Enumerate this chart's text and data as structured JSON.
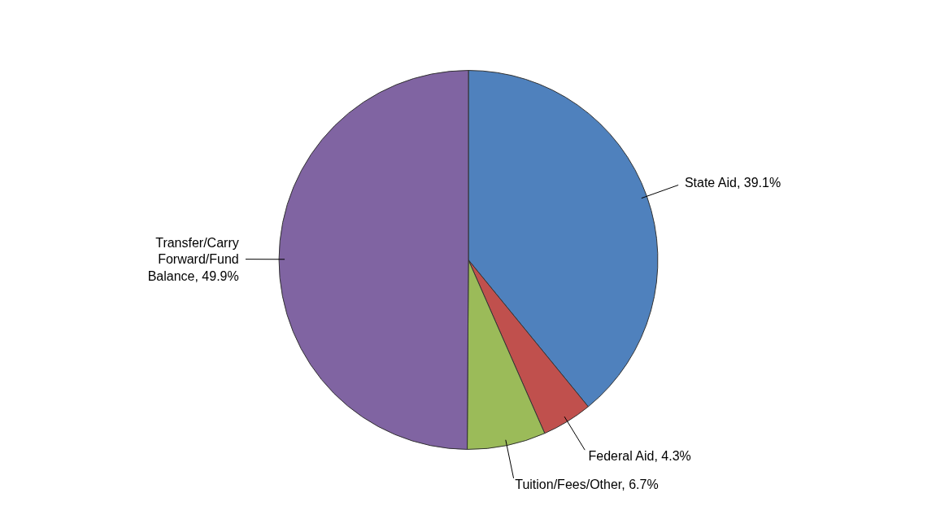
{
  "chart_data": {
    "type": "pie",
    "categories": [
      "State Aid",
      "Federal Aid",
      "Tuition/Fees/Other",
      "Transfer/Carry Forward/Fund Balance"
    ],
    "values": [
      39.1,
      4.3,
      6.7,
      49.9
    ],
    "value_labels": [
      "39.1%",
      "4.3%",
      "6.7%",
      "49.9%"
    ],
    "colors": [
      "#4f81bd",
      "#c0504d",
      "#9bbb59",
      "#8064a2"
    ]
  }
}
